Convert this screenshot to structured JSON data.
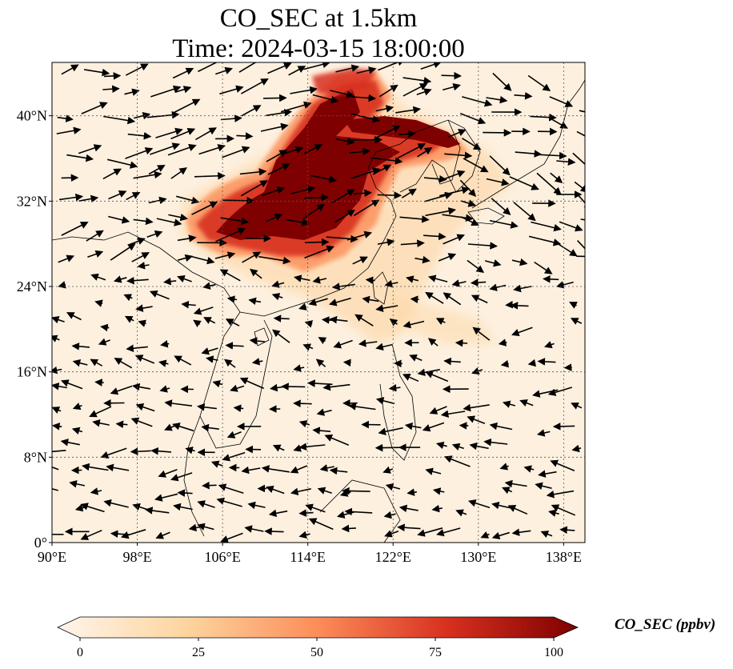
{
  "title": {
    "line1": "CO_SEC at 1.5km",
    "line2": "Time: 2024-03-15 18:00:00"
  },
  "map": {
    "lon_range": [
      90,
      140
    ],
    "lat_range": [
      0,
      45
    ],
    "x_ticks": [
      "90°E",
      "98°E",
      "106°E",
      "114°E",
      "122°E",
      "130°E",
      "138°E"
    ],
    "x_tick_values": [
      90,
      98,
      106,
      114,
      122,
      130,
      138
    ],
    "y_ticks": [
      "0°",
      "8°N",
      "16°N",
      "24°N",
      "32°N",
      "40°N"
    ],
    "y_tick_values": [
      0,
      8,
      16,
      24,
      32,
      40
    ],
    "gridlines": "dotted",
    "field_colormap": "white-orange-red",
    "field_colors": [
      "#fff5eb",
      "#fdd49e",
      "#fc8d59",
      "#d7301f",
      "#7f0000"
    ],
    "arrow_color": "#000000",
    "coastline_color": "#000000"
  },
  "colorbar": {
    "label": "CO_SEC (ppbv)",
    "ticks": [
      "0",
      "25",
      "50",
      "75",
      "100"
    ],
    "tick_values": [
      0,
      25,
      50,
      75,
      100
    ],
    "extend": "both"
  }
}
